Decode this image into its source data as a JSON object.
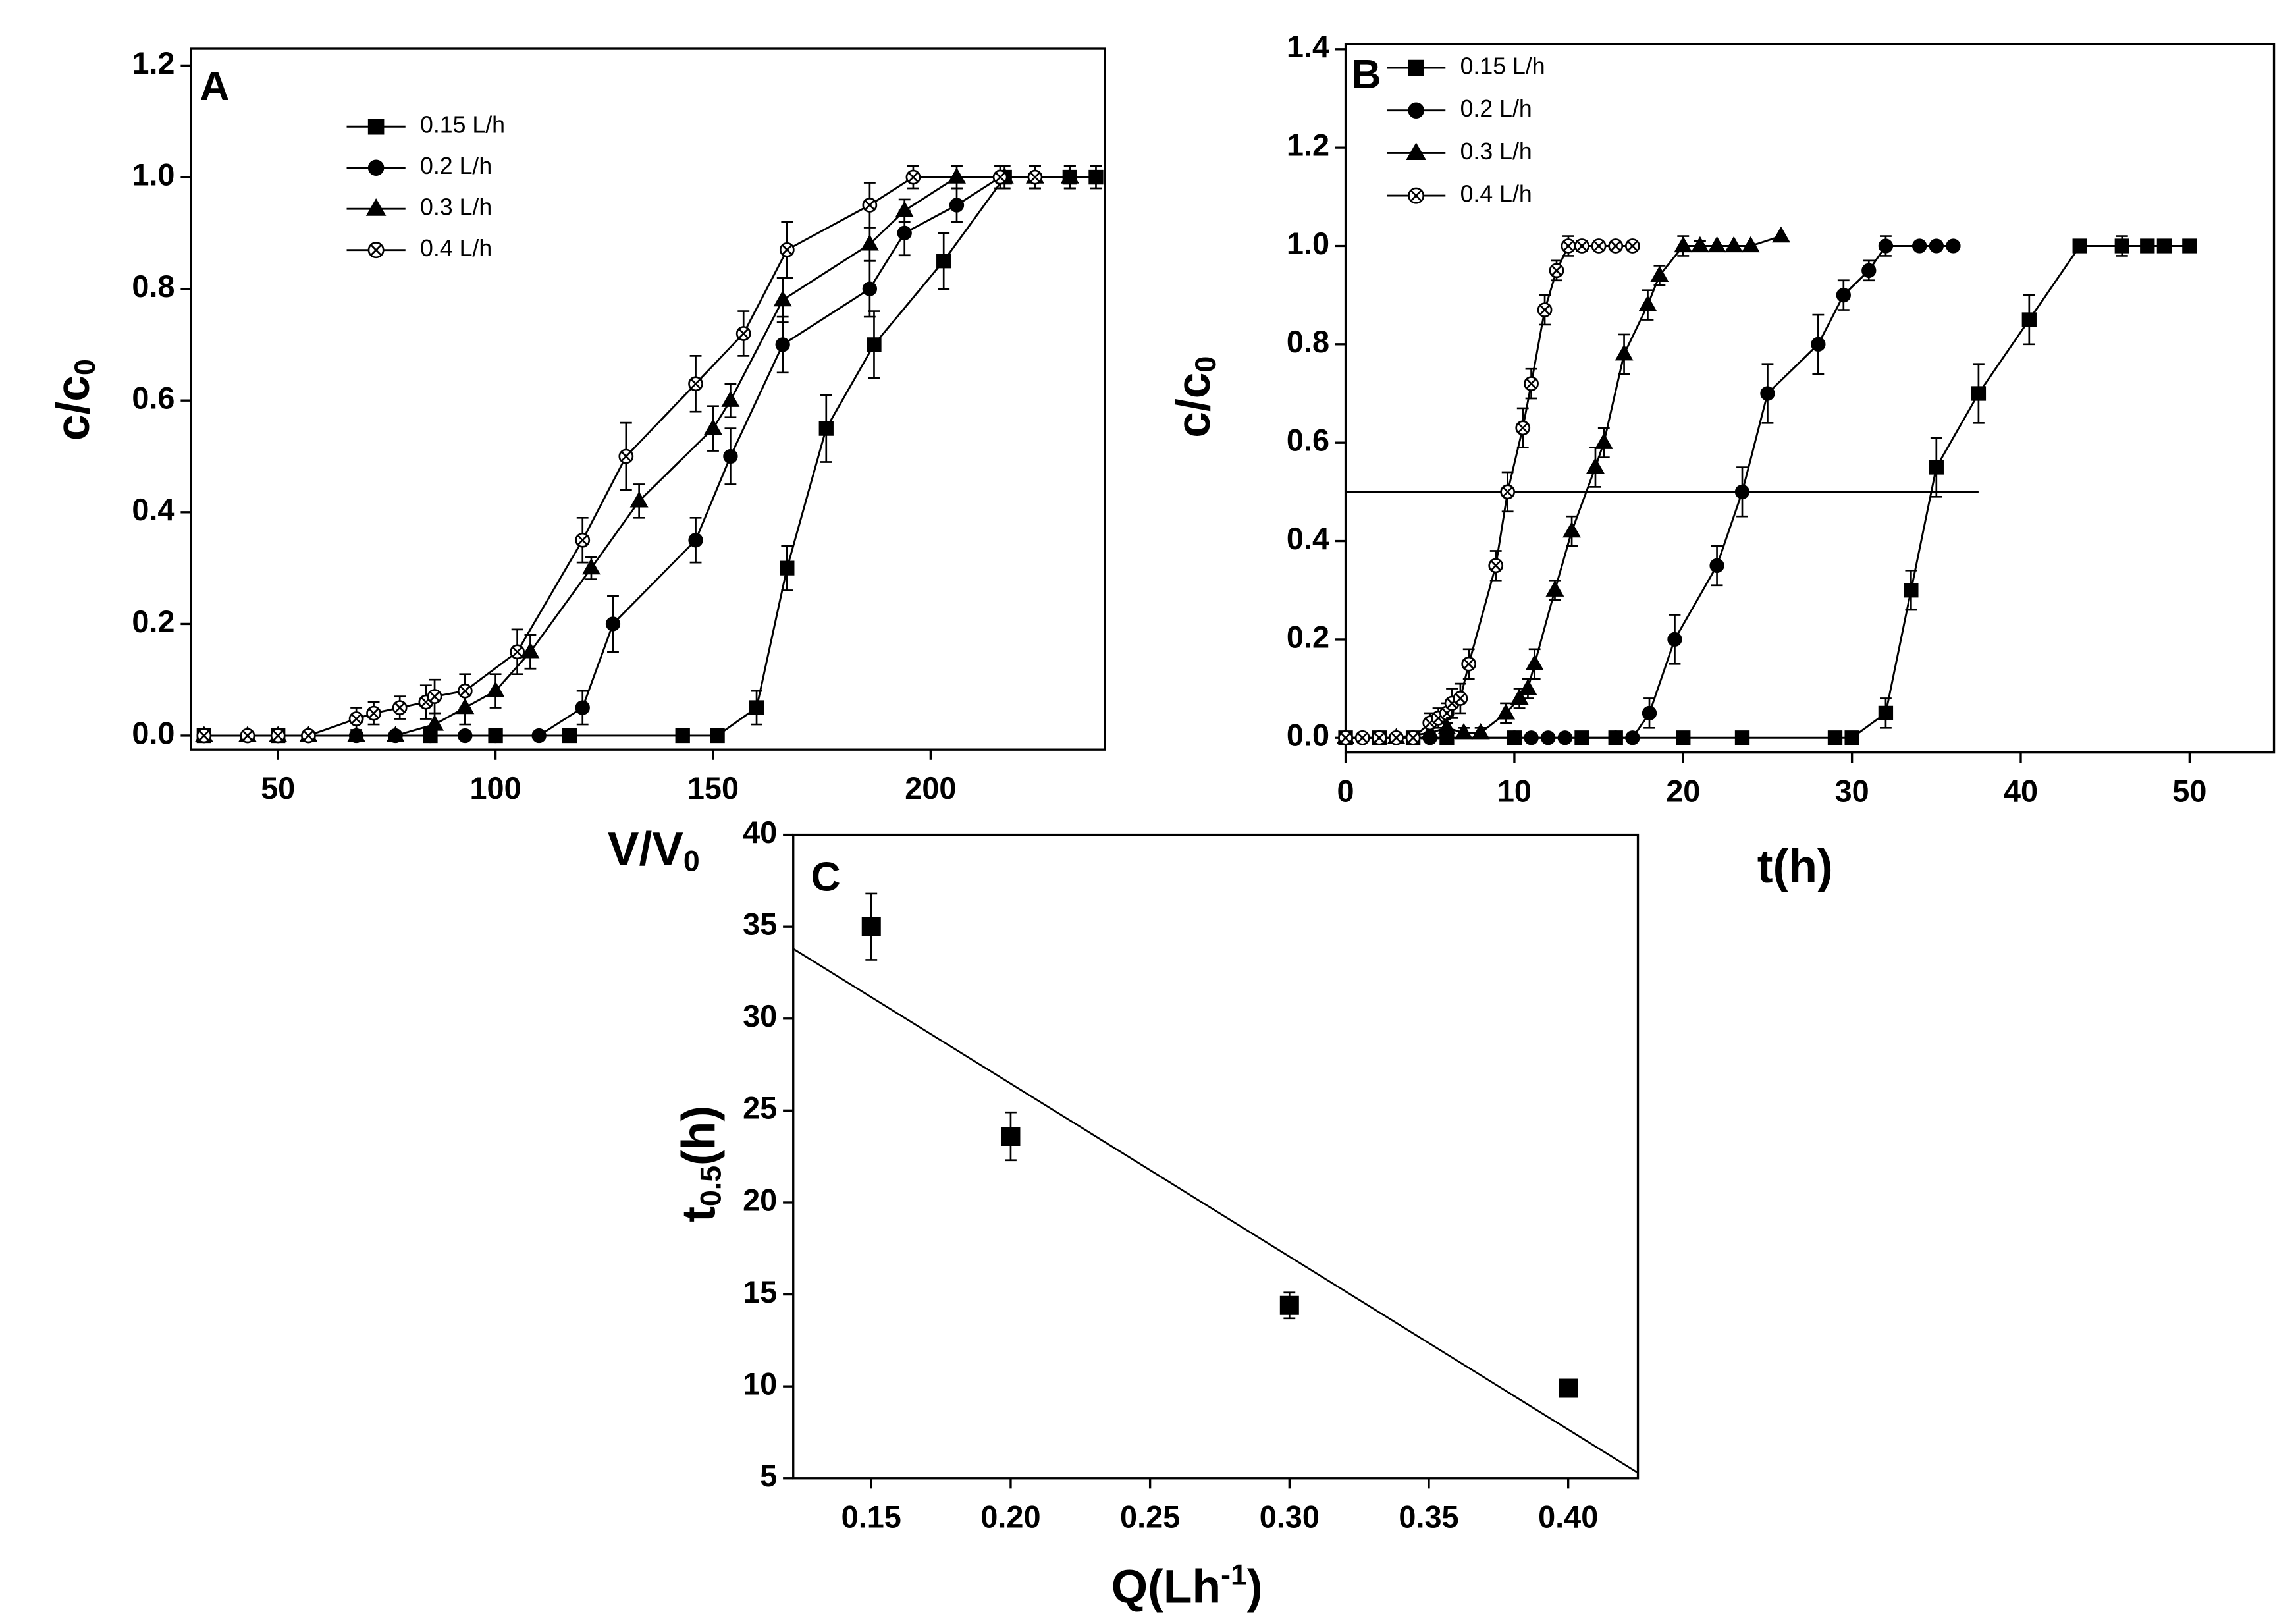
{
  "chart_data": [
    {
      "type": "line",
      "panel_label": "A",
      "x_label": [
        {
          "text": "V/V"
        },
        {
          "text": "0",
          "sub": true
        }
      ],
      "y_label": [
        {
          "text": "c/c"
        },
        {
          "text": "0",
          "sub": true
        }
      ],
      "xlim": [
        30,
        240
      ],
      "ylim": [
        -0.025,
        1.23
      ],
      "xticks": [
        50,
        100,
        150,
        200
      ],
      "yticks": [
        {
          "value": 0,
          "label": "0.0"
        },
        {
          "value": 0.2,
          "label": "0.2"
        },
        {
          "value": 0.4,
          "label": "0.4"
        },
        {
          "value": 0.6,
          "label": "0.6"
        },
        {
          "value": 0.8,
          "label": "0.8"
        },
        {
          "value": 1,
          "label": "1.0"
        },
        {
          "value": 1.2,
          "label": "1.2"
        }
      ],
      "legend": "upper left",
      "series": [
        {
          "name": "0.15 L/h",
          "color": "#000000",
          "marker": "square",
          "x": [
            33,
            50,
            85,
            100,
            117,
            143,
            151,
            160,
            167,
            176,
            187,
            203,
            217,
            232,
            238
          ],
          "values": [
            0,
            0,
            0,
            0,
            0,
            0,
            0,
            0.05,
            0.3,
            0.55,
            0.7,
            0.85,
            1,
            1,
            1
          ],
          "errors": [
            0,
            0,
            0,
            0,
            0,
            0,
            0,
            0.03,
            0.04,
            0.06,
            0.06,
            0.05,
            0.02,
            0.02,
            0.02
          ]
        },
        {
          "name": "0.2 L/h",
          "color": "#000000",
          "marker": "circle",
          "x": [
            33,
            43,
            50,
            57,
            68,
            77,
            85,
            93,
            100,
            110,
            120,
            127,
            146,
            154,
            166,
            186,
            194,
            206,
            216,
            224,
            232
          ],
          "values": [
            0,
            0,
            0,
            0,
            0,
            0,
            0,
            0,
            0,
            0,
            0.05,
            0.2,
            0.35,
            0.5,
            0.7,
            0.8,
            0.9,
            0.95,
            1,
            1,
            1
          ],
          "errors": [
            0,
            0,
            0,
            0,
            0,
            0,
            0,
            0,
            0,
            0,
            0.03,
            0.05,
            0.04,
            0.05,
            0.05,
            0.05,
            0.04,
            0.03,
            0.02,
            0.02,
            0.02
          ]
        },
        {
          "name": "0.3 L/h",
          "color": "#000000",
          "marker": "triangle",
          "x": [
            33,
            43,
            50,
            57,
            68,
            77,
            86,
            93,
            100,
            108,
            122,
            133,
            150,
            154,
            166,
            186,
            194,
            206,
            217,
            224,
            232
          ],
          "values": [
            0,
            0,
            0,
            0,
            0,
            0,
            0.02,
            0.05,
            0.08,
            0.15,
            0.3,
            0.42,
            0.55,
            0.6,
            0.78,
            0.88,
            0.94,
            1,
            1,
            1,
            1
          ],
          "errors": [
            0,
            0,
            0,
            0,
            0,
            0,
            0.02,
            0.03,
            0.03,
            0.03,
            0.02,
            0.03,
            0.04,
            0.03,
            0.04,
            0.03,
            0.02,
            0.02,
            0.02,
            0.02,
            0.02
          ]
        },
        {
          "name": "0.4 L/h",
          "color": "#000000",
          "marker": "circle-x",
          "x": [
            33,
            43,
            50,
            57,
            68,
            72,
            78,
            84,
            86,
            93,
            105,
            120,
            130,
            146,
            157,
            167,
            186,
            196,
            216,
            224
          ],
          "values": [
            0,
            0,
            0,
            0,
            0.03,
            0.04,
            0.05,
            0.06,
            0.07,
            0.08,
            0.15,
            0.35,
            0.5,
            0.63,
            0.72,
            0.87,
            0.95,
            1,
            1,
            1
          ],
          "errors": [
            0,
            0,
            0,
            0,
            0.02,
            0.02,
            0.02,
            0.03,
            0.03,
            0.03,
            0.04,
            0.04,
            0.06,
            0.05,
            0.04,
            0.05,
            0.04,
            0.02,
            0.02,
            0.02
          ]
        }
      ]
    },
    {
      "type": "line",
      "panel_label": "B",
      "x_label": [
        {
          "text": "t(h)"
        }
      ],
      "y_label": [
        {
          "text": "c/c"
        },
        {
          "text": "0",
          "sub": true
        }
      ],
      "xlim": [
        0,
        55
      ],
      "ylim": [
        -0.03,
        1.41
      ],
      "xticks": [
        0,
        10,
        20,
        30,
        40,
        50
      ],
      "yticks": [
        {
          "value": 0,
          "label": "0.0"
        },
        {
          "value": 0.2,
          "label": "0.2"
        },
        {
          "value": 0.4,
          "label": "0.4"
        },
        {
          "value": 0.6,
          "label": "0.6"
        },
        {
          "value": 0.8,
          "label": "0.8"
        },
        {
          "value": 1,
          "label": "1.0"
        },
        {
          "value": 1.2,
          "label": "1.2"
        },
        {
          "value": 1.4,
          "label": "1.4"
        }
      ],
      "legend": "upper left",
      "reference_line": {
        "x": [
          0,
          37.5
        ],
        "y": 0.5
      },
      "series": [
        {
          "name": "0.15 L/h",
          "color": "#000000",
          "marker": "square",
          "x": [
            0,
            2,
            4,
            6,
            10,
            14,
            16,
            20,
            23.5,
            29,
            30,
            32,
            33.5,
            35,
            37.5,
            40.5,
            43.5,
            46,
            47.5,
            48.5,
            50
          ],
          "values": [
            0,
            0,
            0,
            0,
            0,
            0,
            0,
            0,
            0,
            0,
            0,
            0.05,
            0.3,
            0.55,
            0.7,
            0.85,
            1,
            1,
            1,
            1,
            1
          ],
          "errors": [
            0,
            0,
            0,
            0,
            0,
            0,
            0,
            0,
            0,
            0,
            0,
            0.03,
            0.04,
            0.06,
            0.06,
            0.05,
            0,
            0.02,
            0,
            0,
            0
          ]
        },
        {
          "name": "0.2 L/h",
          "color": "#000000",
          "marker": "circle",
          "x": [
            0,
            5,
            10,
            11,
            12,
            13,
            16,
            17,
            18,
            19.5,
            22,
            23.5,
            25,
            28,
            29.5,
            31,
            32,
            34,
            35,
            36
          ],
          "values": [
            0,
            0,
            0,
            0,
            0,
            0,
            0,
            0,
            0.05,
            0.2,
            0.35,
            0.5,
            0.7,
            0.8,
            0.9,
            0.95,
            1,
            1,
            1,
            1
          ],
          "errors": [
            0,
            0,
            0,
            0,
            0,
            0,
            0,
            0,
            0.03,
            0.05,
            0.04,
            0.05,
            0.06,
            0.06,
            0.03,
            0.02,
            0.02,
            0,
            0,
            0
          ]
        },
        {
          "name": "0.3 L/h",
          "color": "#000000",
          "marker": "triangle",
          "x": [
            0,
            3,
            5,
            6,
            7,
            8,
            9.5,
            10.3,
            10.8,
            11.2,
            12.4,
            13.4,
            14.8,
            15.3,
            16.5,
            17.9,
            18.6,
            20,
            21,
            22,
            23,
            24,
            25.8
          ],
          "values": [
            0,
            0,
            0.01,
            0.02,
            0.01,
            0.01,
            0.05,
            0.08,
            0.1,
            0.15,
            0.3,
            0.42,
            0.55,
            0.6,
            0.78,
            0.88,
            0.94,
            1,
            1,
            1,
            1,
            1,
            1.02
          ],
          "errors": [
            0,
            0,
            0.01,
            0.01,
            0.01,
            0.01,
            0.02,
            0.02,
            0.02,
            0.03,
            0.02,
            0.03,
            0.04,
            0.03,
            0.04,
            0.03,
            0.02,
            0.02,
            0.01,
            0,
            0,
            0,
            0
          ]
        },
        {
          "name": "0.4 L/h",
          "color": "#000000",
          "marker": "circle-x",
          "x": [
            0,
            1,
            2,
            3,
            4,
            5,
            5.5,
            6,
            6.3,
            6.8,
            7.3,
            8.9,
            9.6,
            10.5,
            11,
            11.8,
            12.5,
            13.2,
            14,
            15,
            16,
            17
          ],
          "values": [
            0,
            0,
            0,
            0,
            0,
            0.03,
            0.04,
            0.05,
            0.07,
            0.08,
            0.15,
            0.35,
            0.5,
            0.63,
            0.72,
            0.87,
            0.95,
            1,
            1,
            1,
            1,
            1
          ],
          "errors": [
            0,
            0,
            0,
            0,
            0,
            0.02,
            0.02,
            0.02,
            0.03,
            0.03,
            0.03,
            0.03,
            0.04,
            0.04,
            0.03,
            0.03,
            0.02,
            0.02,
            0.01,
            0,
            0,
            0
          ]
        }
      ]
    },
    {
      "type": "scatter",
      "panel_label": "C",
      "x_label": [
        {
          "text": "Q(Lh"
        },
        {
          "text": "-1",
          "sup": true
        },
        {
          "text": ")"
        }
      ],
      "y_label": [
        {
          "text": "t"
        },
        {
          "text": "0.5",
          "sub": true
        },
        {
          "text": "(h)"
        }
      ],
      "xlim": [
        0.122,
        0.425
      ],
      "ylim": [
        5,
        40
      ],
      "xticks": [
        {
          "value": 0.15,
          "label": "0.15"
        },
        {
          "value": 0.2,
          "label": "0.20"
        },
        {
          "value": 0.25,
          "label": "0.25"
        },
        {
          "value": 0.3,
          "label": "0.30"
        },
        {
          "value": 0.35,
          "label": "0.35"
        },
        {
          "value": 0.4,
          "label": "0.40"
        }
      ],
      "yticks": [
        5,
        10,
        15,
        20,
        25,
        30,
        35,
        40
      ],
      "series": [
        {
          "color": "#000000",
          "marker": "square",
          "x": [
            0.15,
            0.2,
            0.3,
            0.4
          ],
          "values": [
            35,
            23.6,
            14.4,
            9.9
          ],
          "errors": [
            1.8,
            1.3,
            0.7,
            0.4
          ]
        }
      ],
      "fit": {
        "x": [
          0.122,
          0.425
        ],
        "y": [
          33.8,
          5.3
        ]
      }
    }
  ]
}
